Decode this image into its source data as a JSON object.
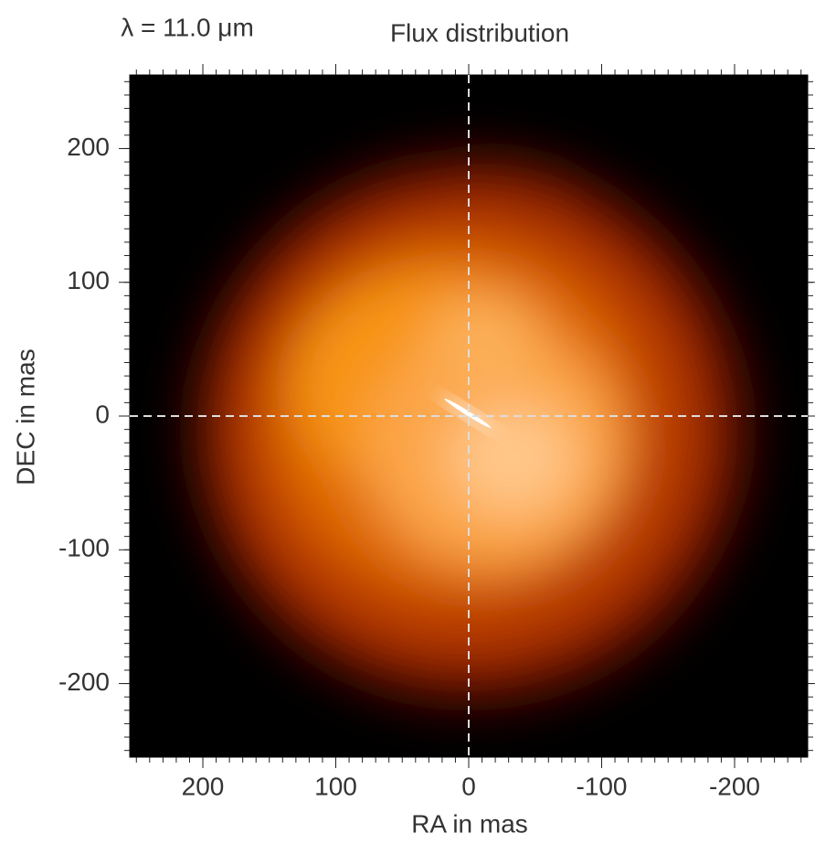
{
  "chart_data": {
    "type": "image",
    "title": "Flux distribution",
    "annotation": "λ = 11.0 μm",
    "x_label": "RA in mas",
    "y_label": "DEC in mas",
    "xlim": [
      255,
      -255
    ],
    "ylim": [
      -255,
      255
    ],
    "xticks": [
      200,
      100,
      0,
      -100,
      -200
    ],
    "yticks": [
      -200,
      -100,
      0,
      100,
      200
    ],
    "minor_ticks": true,
    "crosshair": {
      "x": 0,
      "y": 0
    }
  }
}
